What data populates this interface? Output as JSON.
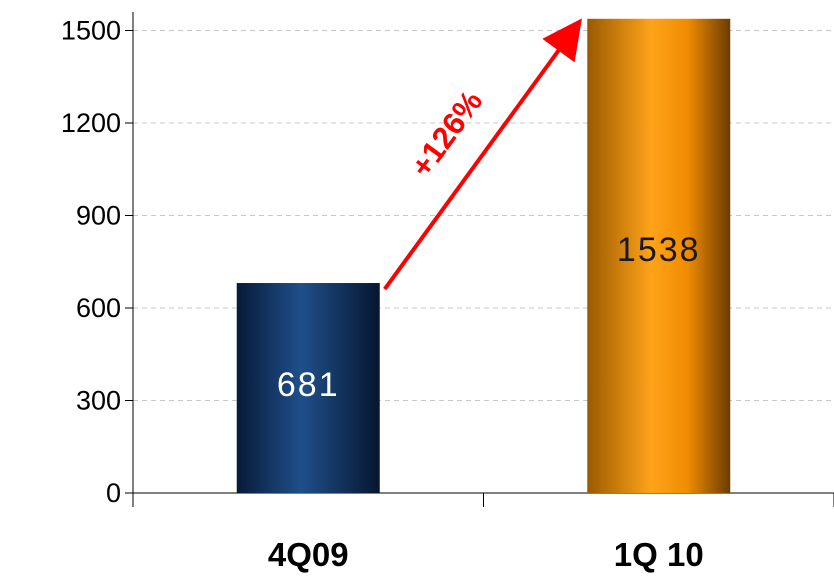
{
  "chart_data": {
    "type": "bar",
    "categories": [
      "4Q09",
      "1Q 10"
    ],
    "values": [
      681,
      1538
    ],
    "data_labels": [
      "681",
      "1538"
    ],
    "yticks": [
      "0",
      "300",
      "600",
      "900",
      "1200",
      "1500"
    ],
    "ylim": [
      0,
      1560
    ],
    "grid": true,
    "bar_colors": [
      "#0b2d5c",
      "#f39200"
    ],
    "annotation": {
      "text": "+126%",
      "color": "#ff0000"
    }
  }
}
